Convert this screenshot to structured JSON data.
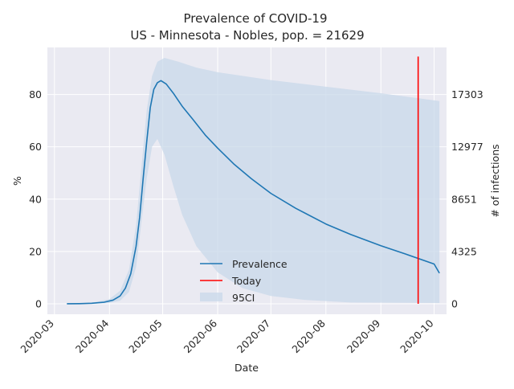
{
  "chart_data": {
    "type": "line",
    "title_line1": "Prevalence of COVID-19",
    "title_line2": "US - Minnesota - Nobles, pop. = 21629",
    "xlabel": "Date",
    "ylabel_left": "%",
    "ylabel_right": "# of infections",
    "x_ticks": [
      "2020-03",
      "2020-04",
      "2020-05",
      "2020-06",
      "2020-07",
      "2020-08",
      "2020-09",
      "2020-10"
    ],
    "y_ticks_left": [
      "0",
      "20",
      "40",
      "60",
      "80"
    ],
    "y_ticks_right": [
      "0",
      "4325",
      "8651",
      "12977",
      "17303"
    ],
    "ylim_left": [
      -4,
      98
    ],
    "xlim": [
      "2020-02-26",
      "2020-10-08"
    ],
    "grid": true,
    "legend_position": "lower-center",
    "legend": [
      "Prevalence",
      "Today",
      "95CI"
    ],
    "series": [
      {
        "name": "Prevalence",
        "color": "#1f77b4",
        "points": [
          [
            "2020-03-08",
            0
          ],
          [
            "2020-03-15",
            0.05
          ],
          [
            "2020-03-22",
            0.2
          ],
          [
            "2020-03-29",
            0.6
          ],
          [
            "2020-04-03",
            1.4
          ],
          [
            "2020-04-07",
            3.0
          ],
          [
            "2020-04-10",
            6.0
          ],
          [
            "2020-04-13",
            11.5
          ],
          [
            "2020-04-16",
            22
          ],
          [
            "2020-04-18",
            33
          ],
          [
            "2020-04-20",
            48
          ],
          [
            "2020-04-22",
            62
          ],
          [
            "2020-04-24",
            75
          ],
          [
            "2020-04-26",
            82
          ],
          [
            "2020-04-28",
            84.5
          ],
          [
            "2020-04-30",
            85.3
          ],
          [
            "2020-05-03",
            84
          ],
          [
            "2020-05-07",
            80.5
          ],
          [
            "2020-05-12",
            75.5
          ],
          [
            "2020-05-18",
            70.5
          ],
          [
            "2020-05-25",
            64.5
          ],
          [
            "2020-06-01",
            59.5
          ],
          [
            "2020-06-10",
            53.5
          ],
          [
            "2020-06-20",
            47.8
          ],
          [
            "2020-07-01",
            42.2
          ],
          [
            "2020-07-15",
            36.5
          ],
          [
            "2020-08-01",
            30.5
          ],
          [
            "2020-08-15",
            26.5
          ],
          [
            "2020-09-01",
            22.2
          ],
          [
            "2020-09-15",
            19.0
          ],
          [
            "2020-10-01",
            15.2
          ],
          [
            "2020-10-04",
            11.7
          ]
        ]
      },
      {
        "name": "Today",
        "color": "#ff0000",
        "points": [
          [
            "2020-09-22",
            0
          ],
          [
            "2020-09-22",
            94.5
          ]
        ]
      }
    ],
    "ci_band": {
      "name": "95CI",
      "color": "#c8d8ea",
      "upper": [
        [
          "2020-03-08",
          0
        ],
        [
          "2020-03-22",
          0.4
        ],
        [
          "2020-04-01",
          1.8
        ],
        [
          "2020-04-07",
          5
        ],
        [
          "2020-04-12",
          13
        ],
        [
          "2020-04-16",
          30
        ],
        [
          "2020-04-19",
          52
        ],
        [
          "2020-04-22",
          74
        ],
        [
          "2020-04-25",
          87
        ],
        [
          "2020-04-28",
          92.5
        ],
        [
          "2020-05-02",
          94
        ],
        [
          "2020-05-10",
          92.5
        ],
        [
          "2020-05-20",
          90.3
        ],
        [
          "2020-06-01",
          88.5
        ],
        [
          "2020-07-01",
          85.5
        ],
        [
          "2020-08-01",
          83
        ],
        [
          "2020-09-01",
          80.5
        ],
        [
          "2020-10-04",
          77.5
        ]
      ],
      "lower": [
        [
          "2020-03-08",
          0
        ],
        [
          "2020-03-22",
          0.05
        ],
        [
          "2020-04-01",
          0.3
        ],
        [
          "2020-04-07",
          1.2
        ],
        [
          "2020-04-12",
          4.5
        ],
        [
          "2020-04-16",
          14
        ],
        [
          "2020-04-19",
          31
        ],
        [
          "2020-04-22",
          48
        ],
        [
          "2020-04-25",
          60
        ],
        [
          "2020-04-28",
          63
        ],
        [
          "2020-05-02",
          57
        ],
        [
          "2020-05-07",
          45
        ],
        [
          "2020-05-12",
          34
        ],
        [
          "2020-05-20",
          22
        ],
        [
          "2020-06-01",
          12
        ],
        [
          "2020-06-15",
          6
        ],
        [
          "2020-07-01",
          3
        ],
        [
          "2020-07-20",
          1.5
        ],
        [
          "2020-08-15",
          0.5
        ],
        [
          "2020-10-04",
          0.3
        ]
      ]
    }
  }
}
